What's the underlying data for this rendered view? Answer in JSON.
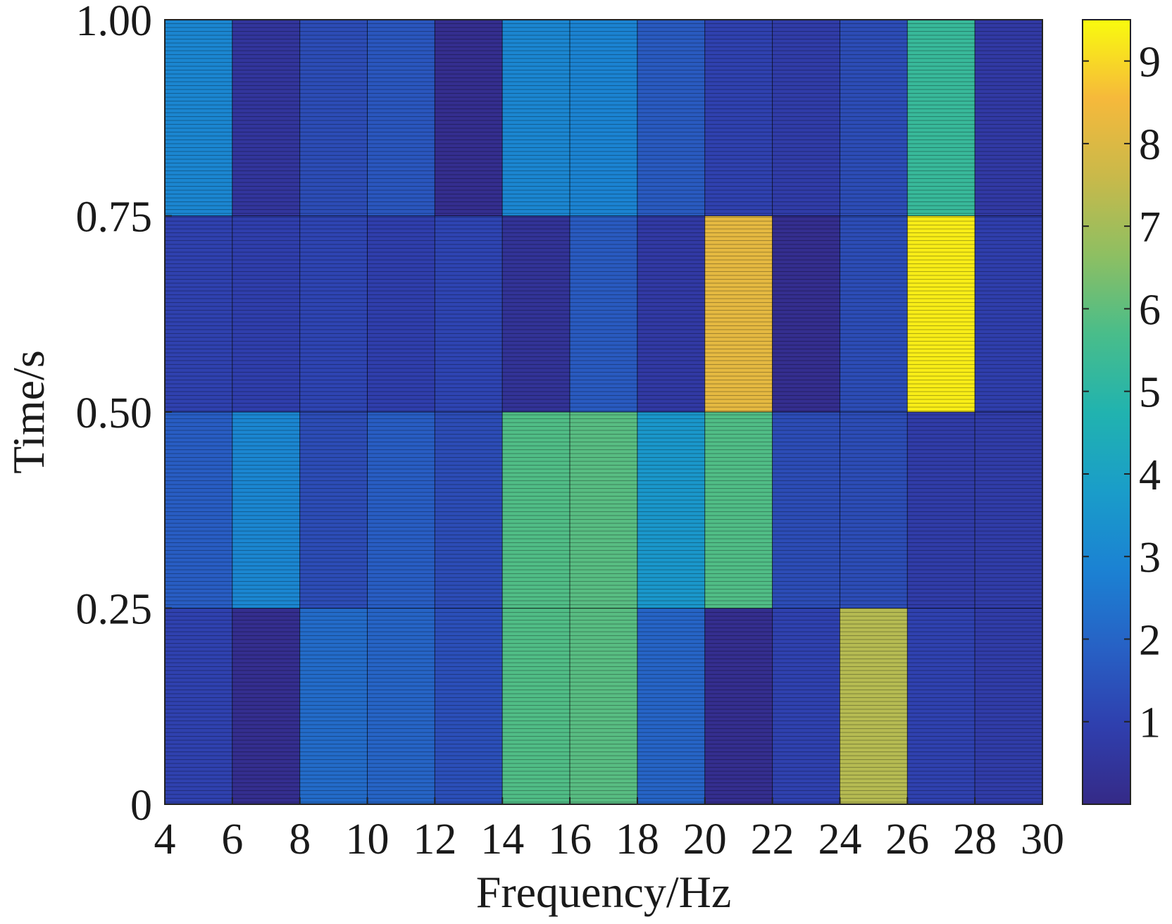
{
  "chart_data": {
    "type": "heatmap",
    "title": "",
    "xlabel": "Frequency/Hz",
    "ylabel": "Time/s",
    "x_edges": [
      4,
      6,
      8,
      10,
      12,
      14,
      16,
      18,
      20,
      22,
      24,
      26,
      28,
      30
    ],
    "y_edges": [
      0,
      0.25,
      0.5,
      0.75,
      1.0
    ],
    "xlim": [
      4,
      30
    ],
    "ylim": [
      0,
      1.0
    ],
    "x_ticks": [
      "4",
      "6",
      "8",
      "10",
      "12",
      "14",
      "16",
      "18",
      "20",
      "22",
      "24",
      "26",
      "28",
      "30"
    ],
    "y_ticks": [
      "0",
      "0.25",
      "0.50",
      "0.75",
      "1.00"
    ],
    "y_tick_values": [
      0,
      0.25,
      0.5,
      0.75,
      1.0
    ],
    "rows_time_bins": [
      "0-0.25",
      "0.25-0.50",
      "0.50-0.75",
      "0.75-1.00"
    ],
    "values": [
      [
        1.0,
        0.2,
        2.2,
        2.0,
        1.4,
        5.8,
        5.9,
        2.0,
        0.2,
        1.0,
        7.3,
        1.0,
        0.8
      ],
      [
        1.8,
        3.0,
        1.3,
        1.8,
        1.3,
        5.8,
        5.9,
        3.6,
        5.8,
        1.3,
        1.3,
        0.8,
        0.8
      ],
      [
        1.0,
        0.9,
        1.1,
        0.9,
        1.1,
        0.4,
        1.7,
        0.7,
        8.2,
        0.2,
        1.3,
        9.3,
        0.9
      ],
      [
        3.0,
        0.5,
        1.3,
        1.6,
        0.2,
        3.0,
        2.9,
        1.7,
        1.0,
        0.8,
        1.3,
        5.3,
        0.7
      ]
    ],
    "colorbar": {
      "min": 0,
      "max": 9.5,
      "ticks": [
        1,
        2,
        3,
        4,
        5,
        6,
        7,
        8,
        9
      ],
      "tick_labels": [
        "1",
        "2",
        "3",
        "4",
        "5",
        "6",
        "7",
        "8",
        "9"
      ],
      "colormap": "parula"
    },
    "grid": false
  }
}
